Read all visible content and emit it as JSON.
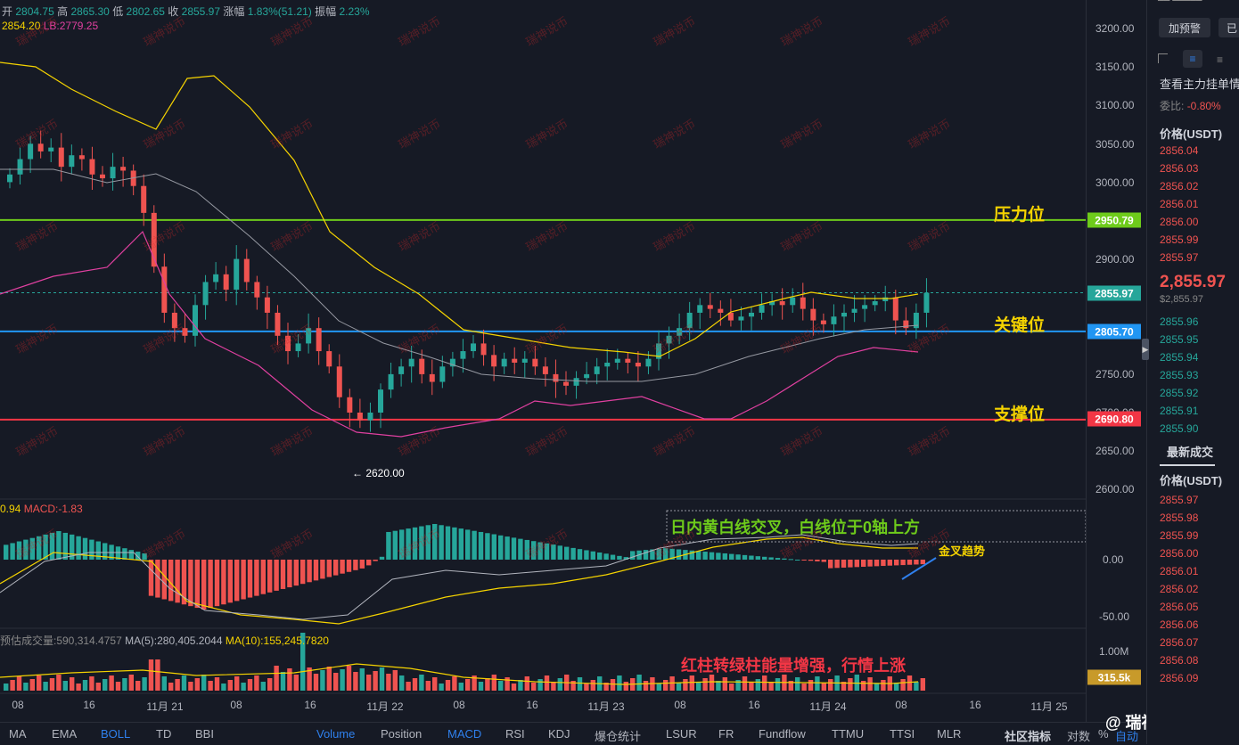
{
  "ohlc_bar": {
    "open_label": "开",
    "open": "2804.75",
    "high_label": "高",
    "high": "2865.30",
    "low_label": "低",
    "low": "2802.65",
    "close_label": "收",
    "close": "2855.97",
    "change_label": "涨幅",
    "change": "1.83%(51.21)",
    "amp_label": "振幅",
    "amp": "2.23%"
  },
  "boll_line": {
    "ub": "2854.20",
    "lb": "LB:2779.25"
  },
  "price_axis": {
    "ticks": [
      "3200.00",
      "3150.00",
      "3100.00",
      "3050.00",
      "3000.00",
      "2900.00",
      "2750.00",
      "2700.00",
      "2650.00",
      "2600.00"
    ]
  },
  "levels": {
    "resistance": {
      "label": "压力位",
      "price": "2950.79",
      "color": "#6ecb1b"
    },
    "key": {
      "label": "关键位",
      "price": "2805.70",
      "color": "#2196f3"
    },
    "support": {
      "label": "支撑位",
      "price": "2690.80",
      "color": "#f23645"
    },
    "current": {
      "price": "2855.97",
      "color": "#26a69a"
    },
    "low_marker": "← 2620.00"
  },
  "macd": {
    "header_a": "0.94",
    "header_b": "MACD:-1.83",
    "ticks": [
      "0.00",
      "-50.00"
    ],
    "annotation": "日内黄白线交叉，白线位于0轴上方",
    "golden_cross": "金叉趋势"
  },
  "volume": {
    "header": "预估成交量:590,314.4757",
    "ma5": "MA(5):280,405.2044",
    "ma10": "MA(10):155,245.7820",
    "tick": "1.00M",
    "badge": "315.5k",
    "annotation": "红柱转绿柱能量增强，行情上涨"
  },
  "xaxis": [
    "08",
    "16",
    "11月 21",
    "08",
    "16",
    "11月 22",
    "08",
    "16",
    "11月 23",
    "08",
    "16",
    "11月 24",
    "08",
    "16",
    "11月 25"
  ],
  "toolbar": [
    "MA",
    "EMA",
    "BOLL",
    "TD",
    "BBI",
    "Volume",
    "Position",
    "MACD",
    "RSI",
    "KDJ",
    "爆仓统计",
    "LSUR",
    "FR",
    "Fundflow",
    "TTMU",
    "TTSI",
    "MLR"
  ],
  "toolbar_right": [
    "社区指标",
    "对数",
    "%",
    "自动"
  ],
  "watermark": "瑞神说币",
  "logo": "@ 瑞神说币",
  "side": {
    "add_alert": "加预警",
    "btn2": "已",
    "view_main": "查看主力挂单情",
    "ratio_label": "委比:",
    "ratio": "-0.80%",
    "price_header": "价格(USDT)",
    "asks": [
      "2856.04",
      "2856.03",
      "2856.02",
      "2856.01",
      "2856.00",
      "2855.99",
      "2855.97"
    ],
    "last": "2,855.97",
    "last_usd": "$2,855.97",
    "bids": [
      "2855.96",
      "2855.95",
      "2855.94",
      "2855.93",
      "2855.92",
      "2855.91",
      "2855.90"
    ],
    "trades_title": "最新成交",
    "price_header2": "价格(USDT)",
    "trades": [
      "2855.97",
      "2855.98",
      "2855.99",
      "2856.00",
      "2856.01",
      "2856.02",
      "2856.05",
      "2856.06",
      "2856.07",
      "2856.08",
      "2856.09"
    ]
  },
  "colors": {
    "up": "#26a69a",
    "down": "#ef5350",
    "bg": "#161a25"
  }
}
